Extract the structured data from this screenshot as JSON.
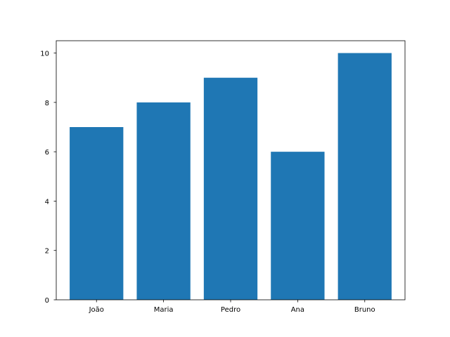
{
  "chart_data": {
    "type": "bar",
    "title": "",
    "xlabel": "",
    "ylabel": "",
    "categories": [
      "João",
      "Maria",
      "Pedro",
      "Ana",
      "Bruno"
    ],
    "values": [
      7,
      8,
      9,
      6,
      10
    ],
    "ylim": [
      0,
      10.5
    ],
    "yticks": [
      0,
      2,
      4,
      6,
      8,
      10
    ],
    "grid": false,
    "bar_color": "#1f77b4"
  }
}
